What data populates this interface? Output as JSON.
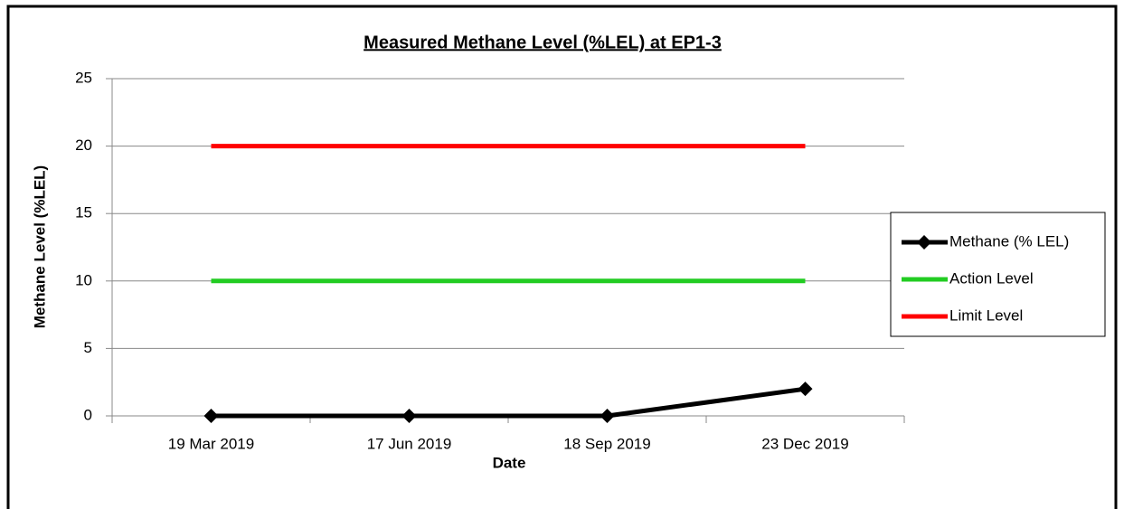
{
  "chart_data": {
    "type": "line",
    "title": "Measured Methane Level (%LEL) at EP1-3",
    "xlabel": "Date",
    "ylabel": "Methane Level (%LEL)",
    "categories": [
      "19 Mar 2019",
      "17 Jun 2019",
      "18 Sep 2019",
      "23 Dec 2019"
    ],
    "series": [
      {
        "name": "Methane (% LEL)",
        "color": "#000000",
        "marker": "diamond",
        "values": [
          0,
          0,
          0,
          2
        ]
      },
      {
        "name": "Action Level",
        "color": "#22cc22",
        "values": [
          10,
          10,
          10,
          10
        ]
      },
      {
        "name": "Limit Level",
        "color": "#ff0000",
        "values": [
          20,
          20,
          20,
          20
        ]
      }
    ],
    "ylim": [
      0,
      25
    ],
    "yticks": [
      0,
      5,
      10,
      15,
      20,
      25
    ],
    "grid": true,
    "legend": "right"
  }
}
